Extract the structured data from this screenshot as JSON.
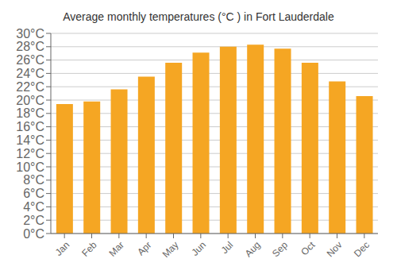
{
  "chart_data": {
    "type": "bar",
    "title": "Average monthly temperatures (°C ) in Fort Lauderdale",
    "categories": [
      "Jan",
      "Feb",
      "Mar",
      "Apr",
      "May",
      "Jun",
      "Jul",
      "Aug",
      "Sep",
      "Oct",
      "Nov",
      "Dec"
    ],
    "values": [
      19.4,
      19.8,
      21.6,
      23.5,
      25.6,
      27.1,
      28.0,
      28.3,
      27.7,
      25.6,
      22.8,
      20.6
    ],
    "color": "#F5A623",
    "ylim": [
      0,
      30
    ],
    "yticks": [
      {
        "value": 0,
        "label": "0°C"
      },
      {
        "value": 2,
        "label": "2°C"
      },
      {
        "value": 4,
        "label": "4°C"
      },
      {
        "value": 6,
        "label": "6°C"
      },
      {
        "value": 8,
        "label": "8°C"
      },
      {
        "value": 10,
        "label": "10°C"
      },
      {
        "value": 12,
        "label": "12°C"
      },
      {
        "value": 14,
        "label": "14°C"
      },
      {
        "value": 16,
        "label": "16°C"
      },
      {
        "value": 18,
        "label": "18°C"
      },
      {
        "value": 20,
        "label": "20°C"
      },
      {
        "value": 22,
        "label": "22°C"
      },
      {
        "value": 24,
        "label": "24°C"
      },
      {
        "value": 26,
        "label": "26°C"
      },
      {
        "value": 28,
        "label": "28°C"
      },
      {
        "value": 30,
        "label": "30°C"
      }
    ],
    "grid": true
  }
}
